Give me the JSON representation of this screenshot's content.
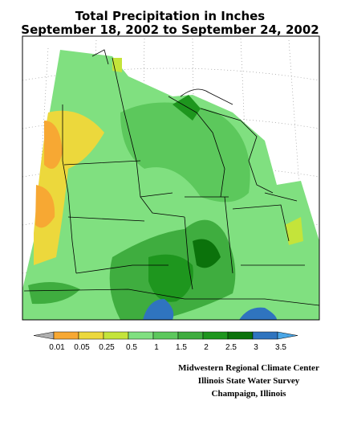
{
  "header": {
    "title_lines": [
      "Total Precipitation in Inches",
      "September 18, 2002 to September 24, 2002"
    ]
  },
  "legend": {
    "labels": [
      0.01,
      0.05,
      0.25,
      0.5,
      1,
      1.5,
      2,
      2.5,
      3,
      3.5
    ],
    "colors": [
      "#b0b0b0",
      "#f7a833",
      "#ecd83c",
      "#c4e43a",
      "#80e080",
      "#5cc85c",
      "#3fad3f",
      "#1e961e",
      "#0b720b",
      "#2f74bf",
      "#4aa6e6"
    ]
  },
  "credits": [
    "Midwestern Regional Climate Center",
    "Illinois State Water Survey",
    "Champaign, Illinois"
  ]
}
